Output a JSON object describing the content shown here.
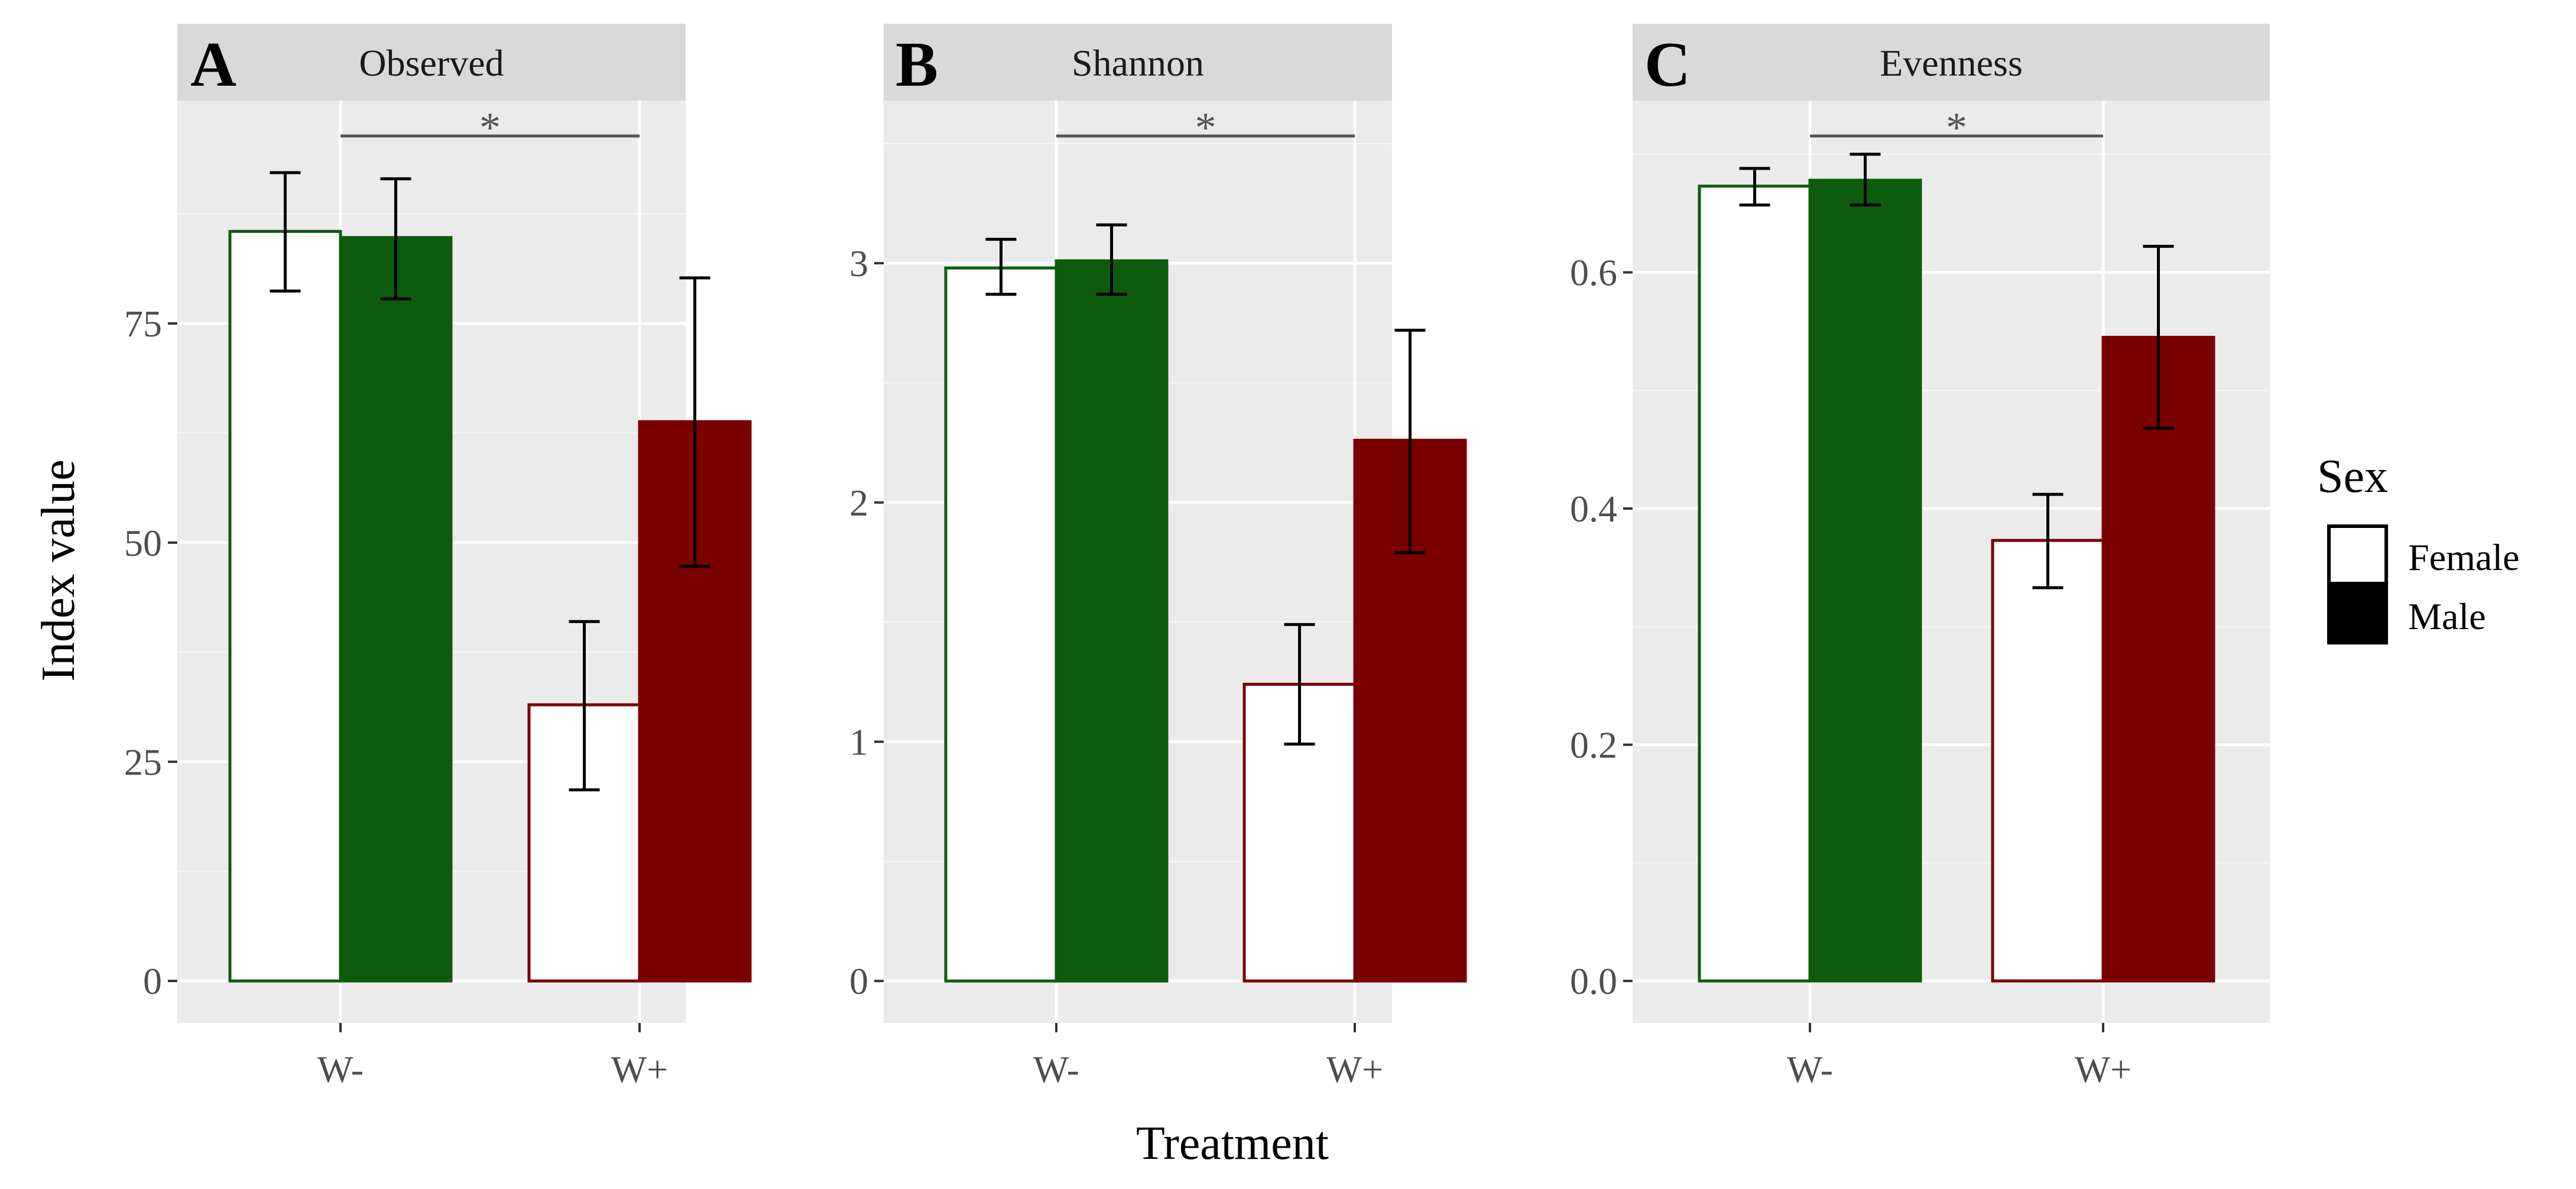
{
  "chart_data": [
    {
      "type": "bar",
      "panel_letter": "A",
      "title": "Observed",
      "categories": [
        "W-",
        "W+"
      ],
      "series": [
        {
          "name": "Female",
          "values": [
            85.5,
            31.5
          ],
          "err_low": [
            78.7,
            21.8
          ],
          "err_high": [
            92.2,
            41.0
          ]
        },
        {
          "name": "Male",
          "values": [
            84.8,
            63.8
          ],
          "err_low": [
            77.8,
            47.3
          ],
          "err_high": [
            91.5,
            80.2
          ]
        }
      ],
      "yticks": [
        0,
        25,
        50,
        75
      ],
      "ytick_labels": [
        "0",
        "25",
        "50",
        "75"
      ],
      "ylim": [
        -4.78,
        100.43
      ],
      "significance": "*"
    },
    {
      "type": "bar",
      "panel_letter": "B",
      "title": "Shannon",
      "categories": [
        "W-",
        "W+"
      ],
      "series": [
        {
          "name": "Female",
          "values": [
            2.98,
            1.24
          ],
          "err_low": [
            2.87,
            0.99
          ],
          "err_high": [
            3.1,
            1.49
          ]
        },
        {
          "name": "Male",
          "values": [
            3.01,
            2.26
          ],
          "err_low": [
            2.87,
            1.79
          ],
          "err_high": [
            3.16,
            2.72
          ]
        }
      ],
      "yticks": [
        0,
        1,
        2,
        3
      ],
      "ytick_labels": [
        "0",
        "1",
        "2",
        "3"
      ],
      "ylim": [
        -0.175,
        3.68
      ],
      "significance": "*"
    },
    {
      "type": "bar",
      "panel_letter": "C",
      "title": "Evenness",
      "categories": [
        "W-",
        "W+"
      ],
      "series": [
        {
          "name": "Female",
          "values": [
            0.673,
            0.373
          ],
          "err_low": [
            0.657,
            0.333
          ],
          "err_high": [
            0.688,
            0.412
          ]
        },
        {
          "name": "Male",
          "values": [
            0.678,
            0.545
          ],
          "err_low": [
            0.657,
            0.468
          ],
          "err_high": [
            0.7,
            0.622
          ]
        }
      ],
      "yticks": [
        0,
        0.2,
        0.4,
        0.6
      ],
      "ytick_labels": [
        "0.0",
        "0.2",
        "0.4",
        "0.6"
      ],
      "ylim": [
        -0.0355,
        0.7455
      ],
      "significance": "*"
    }
  ],
  "xlabel": "Treatment",
  "ylabel": "Index value",
  "legend": {
    "title": "Sex",
    "entries": [
      {
        "label": "Female",
        "fill": "#ffffff"
      },
      {
        "label": "Male",
        "fill": "#000000"
      }
    ]
  },
  "colors": {
    "W-": "#0d5c0d",
    "W+": "#7a0000"
  }
}
